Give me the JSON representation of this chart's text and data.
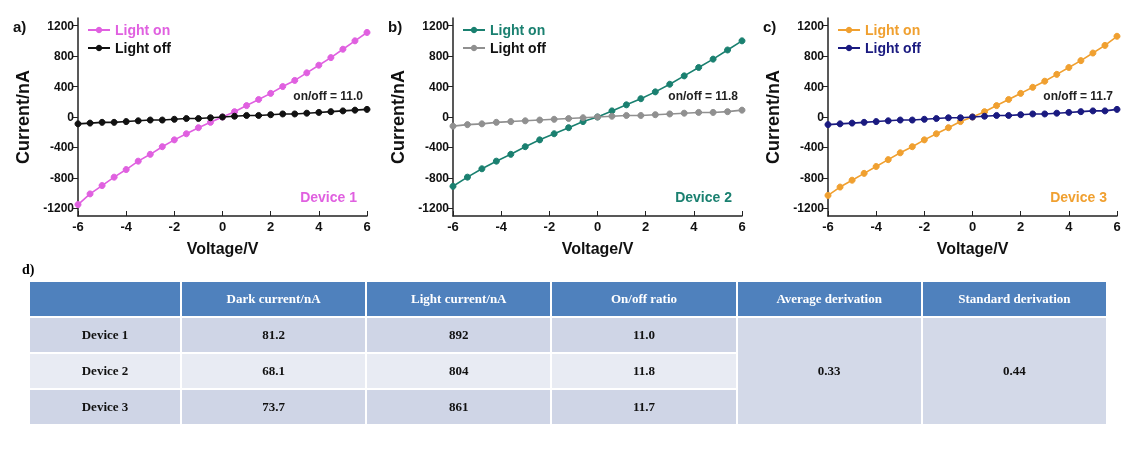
{
  "chart_data": [
    {
      "type": "line",
      "title": "a)",
      "xlabel": "Voltage/V",
      "ylabel": "Current/nA",
      "x": [
        -6,
        -5.5,
        -5,
        -4.5,
        -4,
        -3.5,
        -3,
        -2.5,
        -2,
        -1.5,
        -1,
        -0.5,
        0,
        0.5,
        1,
        1.5,
        2,
        2.5,
        3,
        3.5,
        4,
        4.5,
        5,
        5.5,
        6
      ],
      "series": [
        {
          "name": "Light on",
          "color": "#e060e0",
          "values": [
            -1150,
            -1010,
            -900,
            -790,
            -690,
            -580,
            -490,
            -390,
            -300,
            -220,
            -140,
            -70,
            0,
            70,
            150,
            230,
            310,
            400,
            480,
            580,
            680,
            780,
            890,
            1000,
            1110
          ]
        },
        {
          "name": "Light off",
          "color": "#111111",
          "values": [
            -90,
            -80,
            -70,
            -70,
            -60,
            -50,
            -40,
            -40,
            -30,
            -20,
            -20,
            -10,
            0,
            10,
            20,
            20,
            30,
            40,
            40,
            50,
            60,
            70,
            80,
            90,
            100
          ]
        }
      ],
      "annotations": [
        "on/off = 11.0",
        "Device 1"
      ],
      "xlim": [
        -6,
        6
      ],
      "xticks": [
        -6,
        -4,
        -2,
        0,
        2,
        4,
        6
      ],
      "ylim": [
        -1300,
        1300
      ],
      "yticks": [
        -1200,
        -800,
        -400,
        0,
        400,
        800,
        1200
      ],
      "legend": "top left",
      "marker": "circle",
      "line_style": "solid",
      "grid": false
    },
    {
      "type": "line",
      "title": "b)",
      "xlabel": "Voltage/V",
      "ylabel": "Current/nA",
      "x": [
        -6,
        -5.4,
        -4.8,
        -4.2,
        -3.6,
        -3,
        -2.4,
        -1.8,
        -1.2,
        -0.6,
        0,
        0.6,
        1.2,
        1.8,
        2.4,
        3,
        3.6,
        4.2,
        4.8,
        5.4,
        6
      ],
      "series": [
        {
          "name": "Light on",
          "color": "#1a8070",
          "values": [
            -910,
            -790,
            -680,
            -580,
            -490,
            -390,
            -300,
            -220,
            -140,
            -60,
            0,
            80,
            160,
            240,
            330,
            430,
            540,
            650,
            760,
            880,
            1000
          ]
        },
        {
          "name": "Light off",
          "color": "#909090",
          "values": [
            -120,
            -100,
            -90,
            -70,
            -60,
            -50,
            -40,
            -30,
            -20,
            -10,
            0,
            10,
            20,
            20,
            30,
            40,
            50,
            60,
            60,
            70,
            90
          ]
        }
      ],
      "annotations": [
        "on/off = 11.8",
        "Device 2"
      ],
      "xlim": [
        -6,
        6
      ],
      "xticks": [
        -6,
        -4,
        -2,
        0,
        2,
        4,
        6
      ],
      "ylim": [
        -1300,
        1300
      ],
      "yticks": [
        -1200,
        -800,
        -400,
        0,
        400,
        800,
        1200
      ],
      "legend": "top left",
      "marker": "circle",
      "line_style": "solid",
      "grid": false
    },
    {
      "type": "line",
      "title": "c)",
      "xlabel": "Voltage/V",
      "ylabel": "Current/nA",
      "x": [
        -6,
        -5.5,
        -5,
        -4.5,
        -4,
        -3.5,
        -3,
        -2.5,
        -2,
        -1.5,
        -1,
        -0.5,
        0,
        0.5,
        1,
        1.5,
        2,
        2.5,
        3,
        3.5,
        4,
        4.5,
        5,
        5.5,
        6
      ],
      "series": [
        {
          "name": "Light on",
          "color": "#f0a030",
          "values": [
            -1030,
            -920,
            -830,
            -740,
            -650,
            -560,
            -470,
            -390,
            -300,
            -220,
            -140,
            -60,
            0,
            70,
            150,
            230,
            310,
            390,
            470,
            560,
            650,
            740,
            840,
            940,
            1060
          ]
        },
        {
          "name": "Light off",
          "color": "#1a1a80",
          "values": [
            -100,
            -90,
            -80,
            -70,
            -60,
            -50,
            -40,
            -40,
            -30,
            -20,
            -10,
            -10,
            0,
            10,
            20,
            20,
            30,
            40,
            40,
            50,
            60,
            70,
            80,
            80,
            100
          ]
        }
      ],
      "annotations": [
        "on/off = 11.7",
        "Device 3"
      ],
      "xlim": [
        -6,
        6
      ],
      "xticks": [
        -6,
        -4,
        -2,
        0,
        2,
        4,
        6
      ],
      "ylim": [
        -1300,
        1300
      ],
      "yticks": [
        -1200,
        -800,
        -400,
        0,
        400,
        800,
        1200
      ],
      "legend": "top left",
      "marker": "circle",
      "line_style": "solid",
      "grid": false
    },
    {
      "type": "other",
      "title": "d)",
      "categories": [
        null,
        "Dark current/nA",
        "Light current/nA",
        "On/off ratio",
        "Average derivation",
        "Standard  derivation"
      ],
      "y_categories": [
        "Device 1",
        "Device 2",
        "Device 3"
      ],
      "cell_labels": [
        [
          "81.2",
          "892",
          "11.0",
          "0.33",
          "0.44"
        ],
        [
          "68.1",
          "804",
          "11.8",
          null,
          null
        ],
        [
          "73.7",
          "861",
          "11.7",
          null,
          null
        ]
      ]
    }
  ]
}
